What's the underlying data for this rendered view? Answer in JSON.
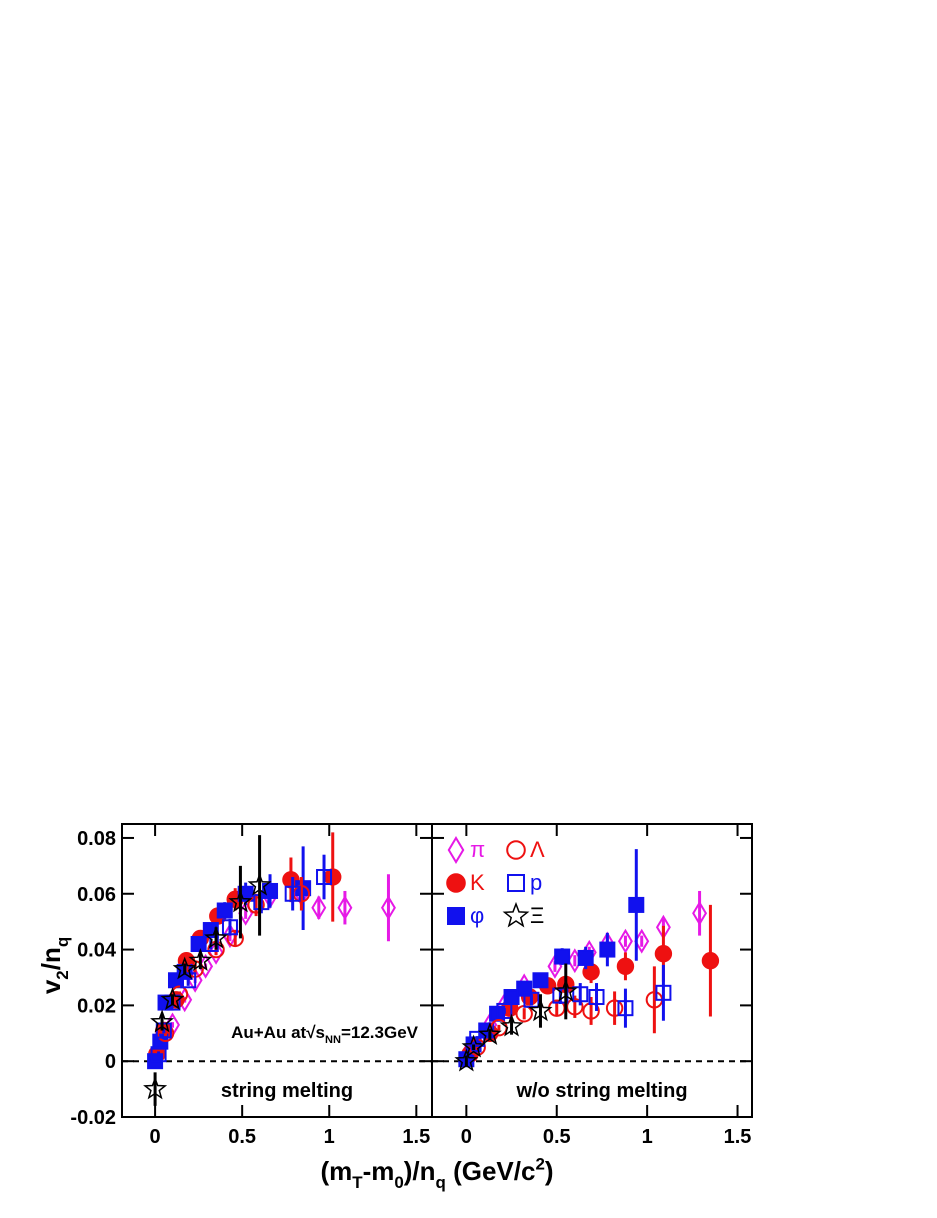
{
  "chart_data": [
    {
      "type": "scatter",
      "title": "string melting",
      "y_label": [
        {
          "text": "v"
        },
        {
          "text": "2",
          "pos": "sub"
        },
        {
          "text": "/n"
        },
        {
          "text": "q",
          "pos": "sub"
        }
      ],
      "x_label": [
        {
          "text": "(m"
        },
        {
          "text": "T",
          "pos": "sub"
        },
        {
          "text": "-m"
        },
        {
          "text": "0",
          "pos": "sub"
        },
        {
          "text": ")/n"
        },
        {
          "text": "q",
          "pos": "sub"
        },
        {
          "text": " (GeV/c"
        },
        {
          "text": "2",
          "pos": "sup"
        },
        {
          "text": ")"
        }
      ],
      "annotation": [
        {
          "text": "Au+Au at"
        },
        {
          "text": "√"
        },
        {
          "text": "s"
        },
        {
          "text": "NN",
          "pos": "sub"
        },
        {
          "text": "=12.3GeV"
        }
      ],
      "xlim": [
        -0.19,
        1.59
      ],
      "ylim": [
        -0.02,
        0.085
      ],
      "xticks": [
        0,
        0.5,
        1,
        1.5
      ],
      "yticks": [
        -0.02,
        0,
        0.02,
        0.04,
        0.06,
        0.08
      ],
      "ytick_labels": true,
      "hline": 0,
      "series": [
        {
          "color": "#e619e6",
          "marker": "diamond",
          "filled": false,
          "x": [
            0.03,
            0.1,
            0.17,
            0.23,
            0.29,
            0.35,
            0.43,
            0.52,
            0.66,
            0.84,
            0.94,
            1.09,
            1.34
          ],
          "values": [
            0.006,
            0.013,
            0.022,
            0.029,
            0.034,
            0.039,
            0.045,
            0.053,
            0.059,
            0.06,
            0.055,
            0.055,
            0.055
          ],
          "errors": [
            0.001,
            0.001,
            0.001,
            0.001,
            0.001,
            0.001,
            0.002,
            0.002,
            0.003,
            0.004,
            0.004,
            0.006,
            0.012
          ]
        },
        {
          "color": "#ee1111",
          "marker": "circle",
          "filled": true,
          "x": [
            0.01,
            0.05,
            0.12,
            0.18,
            0.26,
            0.36,
            0.46,
            0.78,
            1.02
          ],
          "values": [
            0.0025,
            0.011,
            0.022,
            0.036,
            0.044,
            0.052,
            0.058,
            0.065,
            0.066
          ],
          "errors": [
            0.001,
            0.001,
            0.001,
            0.002,
            0.002,
            0.003,
            0.004,
            0.008,
            0.016
          ]
        },
        {
          "color": "#1111ee",
          "marker": "square",
          "filled": true,
          "x": [
            0,
            0.03,
            0.06,
            0.12,
            0.17,
            0.25,
            0.32,
            0.4,
            0.52,
            0.66,
            0.85
          ],
          "values": [
            0,
            0.007,
            0.021,
            0.029,
            0.032,
            0.042,
            0.047,
            0.054,
            0.06,
            0.061,
            0.062
          ],
          "errors": [
            0.002,
            0.001,
            0.001,
            0.001,
            0.002,
            0.002,
            0.002,
            0.003,
            0.004,
            0.006,
            0.015
          ]
        },
        {
          "color": "#ee1111",
          "marker": "circle",
          "filled": false,
          "x": [
            0.06,
            0.14,
            0.23,
            0.35,
            0.46,
            0.58,
            0.84
          ],
          "values": [
            0.01,
            0.024,
            0.033,
            0.04,
            0.044,
            0.056,
            0.06
          ],
          "errors": [
            0.001,
            0.001,
            0.002,
            0.002,
            0.003,
            0.004,
            0.006
          ]
        },
        {
          "color": "#1111ee",
          "marker": "square",
          "filled": false,
          "x": [
            0.02,
            0.05,
            0.1,
            0.19,
            0.32,
            0.43,
            0.61,
            0.79,
            0.97
          ],
          "values": [
            0.0025,
            0.011,
            0.021,
            0.029,
            0.042,
            0.048,
            0.057,
            0.06,
            0.066
          ],
          "errors": [
            0.001,
            0.001,
            0.001,
            0.002,
            0.002,
            0.003,
            0.004,
            0.006,
            0.008
          ]
        },
        {
          "color": "#000000",
          "marker": "star",
          "filled": false,
          "x": [
            0,
            0.04,
            0.1,
            0.17,
            0.26,
            0.35,
            0.49,
            0.6
          ],
          "values": [
            -0.01,
            0.014,
            0.022,
            0.033,
            0.036,
            0.044,
            0.057,
            0.063
          ],
          "errors": [
            0.006,
            0.003,
            0.002,
            0.002,
            0.003,
            0.004,
            0.013,
            0.018
          ]
        }
      ]
    },
    {
      "type": "scatter",
      "title": "w/o string melting",
      "xlim": [
        -0.19,
        1.58
      ],
      "ylim": [
        -0.02,
        0.085
      ],
      "xticks": [
        0,
        0.5,
        1,
        1.5
      ],
      "yticks": [
        -0.02,
        0,
        0.02,
        0.04,
        0.06,
        0.08
      ],
      "ytick_labels": false,
      "hline": 0,
      "legend": "top-left",
      "series": [
        {
          "name": "π",
          "color": "#e619e6",
          "marker": "diamond",
          "filled": false,
          "x": [
            0.02,
            0.13,
            0.21,
            0.32,
            0.49,
            0.6,
            0.68,
            0.78,
            0.88,
            0.97,
            1.09,
            1.29
          ],
          "values": [
            0.004,
            0.013,
            0.02,
            0.027,
            0.034,
            0.036,
            0.039,
            0.042,
            0.043,
            0.043,
            0.048,
            0.053
          ],
          "errors": [
            0.001,
            0.001,
            0.001,
            0.001,
            0.002,
            0.002,
            0.002,
            0.002,
            0.002,
            0.002,
            0.003,
            0.008
          ]
        },
        {
          "name": "K",
          "color": "#ee1111",
          "marker": "circle",
          "filled": true,
          "x": [
            0.02,
            0.13,
            0.24,
            0.35,
            0.45,
            0.55,
            0.69,
            0.88,
            1.09,
            1.35
          ],
          "values": [
            0.0025,
            0.01,
            0.019,
            0.023,
            0.027,
            0.0275,
            0.032,
            0.034,
            0.0385,
            0.036
          ],
          "errors": [
            0.001,
            0.001,
            0.001,
            0.002,
            0.002,
            0.003,
            0.004,
            0.005,
            0.01,
            0.02
          ]
        },
        {
          "name": "φ",
          "color": "#1111ee",
          "marker": "square",
          "filled": true,
          "x": [
            0,
            0.04,
            0.11,
            0.17,
            0.25,
            0.32,
            0.41,
            0.53,
            0.66,
            0.78,
            0.94
          ],
          "values": [
            0.0007,
            0.006,
            0.011,
            0.017,
            0.023,
            0.026,
            0.029,
            0.0375,
            0.037,
            0.04,
            0.056
          ],
          "errors": [
            0.001,
            0.001,
            0.001,
            0.001,
            0.001,
            0.002,
            0.002,
            0.003,
            0.004,
            0.006,
            0.02
          ]
        },
        {
          "name": "Λ",
          "color": "#ee1111",
          "marker": "circle",
          "filled": false,
          "x": [
            0.06,
            0.18,
            0.32,
            0.5,
            0.6,
            0.69,
            0.82,
            1.04
          ],
          "values": [
            0.005,
            0.012,
            0.017,
            0.019,
            0.0195,
            0.018,
            0.019,
            0.022
          ],
          "errors": [
            0.001,
            0.001,
            0.002,
            0.003,
            0.004,
            0.005,
            0.006,
            0.012
          ]
        },
        {
          "name": "p",
          "color": "#1111ee",
          "marker": "square",
          "filled": false,
          "x": [
            0.06,
            0.21,
            0.36,
            0.52,
            0.63,
            0.72,
            0.88,
            1.09
          ],
          "values": [
            0.008,
            0.018,
            0.022,
            0.0235,
            0.024,
            0.023,
            0.019,
            0.0245
          ],
          "errors": [
            0.001,
            0.001,
            0.002,
            0.003,
            0.004,
            0.005,
            0.007,
            0.01
          ]
        },
        {
          "name": "Ξ",
          "color": "#000000",
          "marker": "star",
          "filled": false,
          "x": [
            0,
            0.04,
            0.13,
            0.25,
            0.41,
            0.55
          ],
          "values": [
            0,
            0.005,
            0.0095,
            0.0125,
            0.018,
            0.025
          ],
          "errors": [
            0.002,
            0.001,
            0.002,
            0.003,
            0.006,
            0.01
          ]
        }
      ]
    }
  ]
}
